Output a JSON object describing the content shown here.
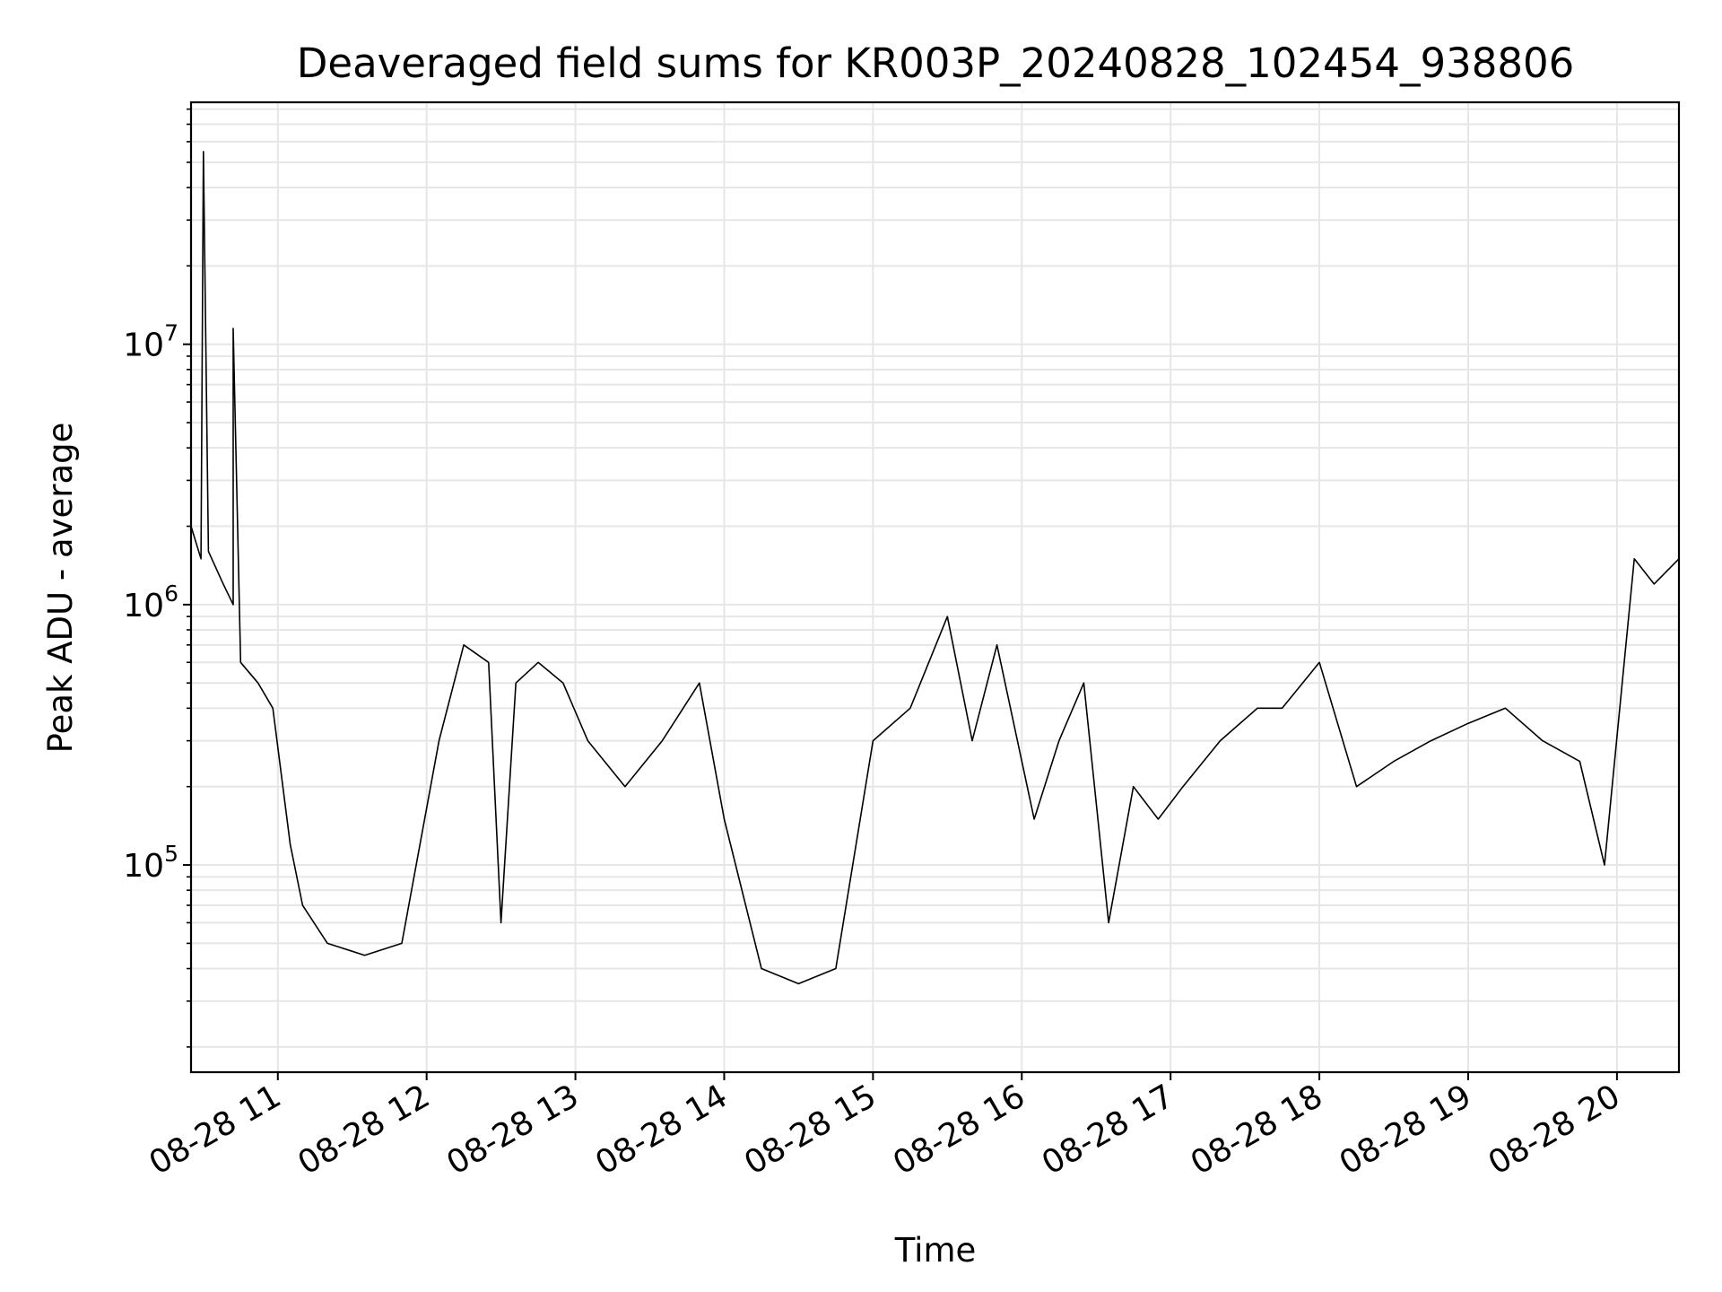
{
  "chart_data": {
    "type": "line",
    "title": "Deaveraged field sums for KR003P_20240828_102454_938806",
    "xlabel": "Time",
    "ylabel": "Peak ADU - average",
    "y_scale": "log",
    "grid": {
      "major": true,
      "minor_y": true,
      "color": "#e6e6e6"
    },
    "line_color": "#000000",
    "x_tick_labels": [
      "08-28 11",
      "08-28 12",
      "08-28 13",
      "08-28 14",
      "08-28 15",
      "08-28 16",
      "08-28 17",
      "08-28 18",
      "08-28 19",
      "08-28 20"
    ],
    "x_ticks": [
      "2024-08-28 11:00",
      "2024-08-28 12:00",
      "2024-08-28 13:00",
      "2024-08-28 14:00",
      "2024-08-28 15:00",
      "2024-08-28 16:00",
      "2024-08-28 17:00",
      "2024-08-28 18:00",
      "2024-08-28 19:00",
      "2024-08-28 20:00"
    ],
    "x_range": [
      "2024-08-28 10:25",
      "2024-08-28 20:25"
    ],
    "y_range": [
      16000,
      85000000
    ],
    "y_tick_labels": [
      {
        "base": "10",
        "exp": "5",
        "value": 100000
      },
      {
        "base": "10",
        "exp": "6",
        "value": 1000000
      },
      {
        "base": "10",
        "exp": "7",
        "value": 10000000
      }
    ],
    "series": [
      {
        "x": [
          "2024-08-28 10:25",
          "2024-08-28 10:29",
          "2024-08-28 10:30",
          "2024-08-28 10:32",
          "2024-08-28 10:38",
          "2024-08-28 10:42",
          "2024-08-28 10:42",
          "2024-08-28 10:45",
          "2024-08-28 10:52",
          "2024-08-28 10:58",
          "2024-08-28 11:05",
          "2024-08-28 11:10",
          "2024-08-28 11:20",
          "2024-08-28 11:35",
          "2024-08-28 11:50",
          "2024-08-28 12:05",
          "2024-08-28 12:15",
          "2024-08-28 12:25",
          "2024-08-28 12:30",
          "2024-08-28 12:36",
          "2024-08-28 12:45",
          "2024-08-28 12:55",
          "2024-08-28 13:05",
          "2024-08-28 13:20",
          "2024-08-28 13:35",
          "2024-08-28 13:50",
          "2024-08-28 14:00",
          "2024-08-28 14:15",
          "2024-08-28 14:30",
          "2024-08-28 14:45",
          "2024-08-28 15:00",
          "2024-08-28 15:15",
          "2024-08-28 15:30",
          "2024-08-28 15:40",
          "2024-08-28 15:50",
          "2024-08-28 16:05",
          "2024-08-28 16:15",
          "2024-08-28 16:25",
          "2024-08-28 16:35",
          "2024-08-28 16:45",
          "2024-08-28 16:55",
          "2024-08-28 17:05",
          "2024-08-28 17:20",
          "2024-08-28 17:35",
          "2024-08-28 17:45",
          "2024-08-28 18:00",
          "2024-08-28 18:15",
          "2024-08-28 18:30",
          "2024-08-28 18:45",
          "2024-08-28 19:00",
          "2024-08-28 19:15",
          "2024-08-28 19:30",
          "2024-08-28 19:45",
          "2024-08-28 19:55",
          "2024-08-28 20:07",
          "2024-08-28 20:15",
          "2024-08-28 20:25"
        ],
        "y": [
          2000000,
          1500000,
          55000000,
          1600000,
          1200000,
          1000000,
          11500000,
          600000,
          500000,
          400000,
          120000,
          70000,
          50000,
          45000,
          50000,
          300000,
          700000,
          600000,
          60000,
          500000,
          600000,
          500000,
          300000,
          200000,
          300000,
          500000,
          150000,
          40000,
          35000,
          40000,
          300000,
          400000,
          900000,
          300000,
          700000,
          150000,
          300000,
          500000,
          60000,
          200000,
          150000,
          200000,
          300000,
          400000,
          400000,
          600000,
          200000,
          250000,
          300000,
          350000,
          400000,
          300000,
          250000,
          100000,
          1500000,
          1200000,
          1500000
        ]
      }
    ]
  }
}
